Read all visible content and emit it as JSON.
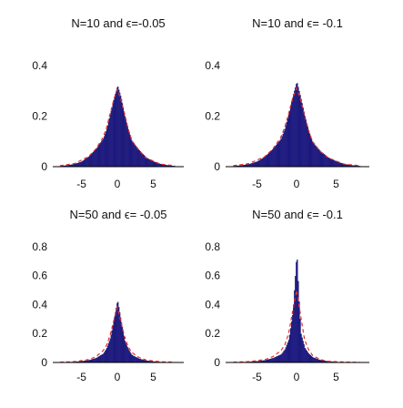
{
  "chart_data": [
    {
      "type": "bar",
      "title": "N=10 and ϵ=-0.05",
      "xticks": [
        "-5",
        "0",
        "5"
      ],
      "yticks": [
        "0",
        "0.2",
        "0.4"
      ],
      "xlim": [
        -8.5,
        8.5
      ],
      "ylim": [
        0,
        0.45
      ],
      "grid": false,
      "series": [
        {
          "kind": "histogram",
          "x": [
            -8,
            -7,
            -6,
            -5,
            -4,
            -3,
            -2,
            -1.5,
            -1,
            -0.5,
            0,
            0.5,
            1,
            1.5,
            2,
            3,
            4,
            5,
            6,
            7,
            8
          ],
          "values": [
            0.002,
            0.005,
            0.01,
            0.02,
            0.04,
            0.07,
            0.11,
            0.15,
            0.21,
            0.27,
            0.32,
            0.27,
            0.2,
            0.145,
            0.1,
            0.065,
            0.035,
            0.02,
            0.01,
            0.005,
            0.002
          ]
        },
        {
          "kind": "fit-curve",
          "color": "#e0302a",
          "x": [
            -8,
            -6,
            -4,
            -3,
            -2,
            -1.5,
            -1,
            -0.5,
            0,
            0.5,
            1,
            1.5,
            2,
            3,
            4,
            6,
            8
          ],
          "values": [
            0.004,
            0.012,
            0.04,
            0.07,
            0.115,
            0.155,
            0.21,
            0.265,
            0.305,
            0.265,
            0.21,
            0.15,
            0.105,
            0.065,
            0.035,
            0.01,
            0.004
          ]
        }
      ]
    },
    {
      "type": "bar",
      "title": "N=10 and ϵ= -0.1",
      "xticks": [
        "-5",
        "0",
        "5"
      ],
      "yticks": [
        "0",
        "0.2",
        "0.4"
      ],
      "xlim": [
        -8.5,
        8.5
      ],
      "ylim": [
        0,
        0.45
      ],
      "grid": false,
      "series": [
        {
          "kind": "histogram",
          "x": [
            -8,
            -7,
            -6,
            -5,
            -4,
            -3,
            -2,
            -1.5,
            -1,
            -0.5,
            0,
            0.5,
            1,
            1.5,
            2,
            3,
            4,
            5,
            6,
            7,
            8
          ],
          "values": [
            0.002,
            0.005,
            0.01,
            0.02,
            0.04,
            0.07,
            0.11,
            0.15,
            0.21,
            0.28,
            0.335,
            0.27,
            0.2,
            0.14,
            0.095,
            0.06,
            0.035,
            0.02,
            0.01,
            0.005,
            0.002
          ]
        },
        {
          "kind": "fit-curve",
          "color": "#e0302a",
          "x": [
            -8,
            -6,
            -4,
            -3,
            -2,
            -1.5,
            -1,
            -0.5,
            0,
            0.5,
            1,
            1.5,
            2,
            3,
            4,
            6,
            8
          ],
          "values": [
            0.004,
            0.012,
            0.04,
            0.07,
            0.115,
            0.155,
            0.21,
            0.27,
            0.31,
            0.265,
            0.205,
            0.145,
            0.1,
            0.06,
            0.035,
            0.01,
            0.004
          ]
        }
      ]
    },
    {
      "type": "bar",
      "title": "N=50 and ϵ= -0.05",
      "xticks": [
        "-5",
        "0",
        "5"
      ],
      "yticks": [
        "0",
        "0.2",
        "0.4",
        "0.6",
        "0.8"
      ],
      "xlim": [
        -8.5,
        8.5
      ],
      "ylim": [
        0,
        0.9
      ],
      "grid": false,
      "series": [
        {
          "kind": "histogram",
          "x": [
            -8,
            -7,
            -6,
            -5,
            -4,
            -3,
            -2,
            -1.5,
            -1,
            -0.5,
            0,
            0.5,
            1,
            1.5,
            2,
            3,
            4,
            5,
            6,
            7,
            8
          ],
          "values": [
            0.001,
            0.002,
            0.004,
            0.008,
            0.015,
            0.03,
            0.06,
            0.1,
            0.17,
            0.3,
            0.43,
            0.28,
            0.15,
            0.09,
            0.05,
            0.025,
            0.012,
            0.006,
            0.003,
            0.001,
            0.001
          ]
        },
        {
          "kind": "fit-curve",
          "color": "#e0302a",
          "x": [
            -8,
            -6,
            -4,
            -3,
            -2,
            -1.5,
            -1,
            -0.5,
            0,
            0.5,
            1,
            1.5,
            2,
            3,
            4,
            6,
            8
          ],
          "values": [
            0.002,
            0.006,
            0.02,
            0.04,
            0.08,
            0.12,
            0.19,
            0.29,
            0.38,
            0.28,
            0.18,
            0.11,
            0.07,
            0.035,
            0.017,
            0.005,
            0.002
          ]
        }
      ]
    },
    {
      "type": "bar",
      "title": "N=50 and ϵ= -0.1",
      "xticks": [
        "-5",
        "0",
        "5"
      ],
      "yticks": [
        "0",
        "0.2",
        "0.4",
        "0.6",
        "0.8"
      ],
      "xlim": [
        -8.5,
        8.5
      ],
      "ylim": [
        0,
        0.9
      ],
      "grid": false,
      "series": [
        {
          "kind": "histogram",
          "x": [
            -8,
            -7,
            -6,
            -5,
            -4,
            -3,
            -2,
            -1.5,
            -1,
            -0.5,
            0,
            0.25,
            0.5,
            1,
            1.5,
            2,
            3,
            4,
            5,
            6,
            7,
            8
          ],
          "values": [
            0.001,
            0.002,
            0.004,
            0.008,
            0.015,
            0.03,
            0.055,
            0.09,
            0.16,
            0.35,
            0.76,
            0.45,
            0.2,
            0.1,
            0.06,
            0.035,
            0.015,
            0.007,
            0.003,
            0.001,
            0.001,
            0.001
          ]
        },
        {
          "kind": "fit-curve",
          "color": "#e0302a",
          "x": [
            -8,
            -6,
            -4,
            -3,
            -2,
            -1.5,
            -1,
            -0.5,
            0,
            0.5,
            1,
            1.5,
            2,
            3,
            4,
            6,
            8
          ],
          "values": [
            0.002,
            0.006,
            0.02,
            0.04,
            0.08,
            0.12,
            0.2,
            0.35,
            0.5,
            0.33,
            0.16,
            0.09,
            0.05,
            0.02,
            0.008,
            0.003,
            0.001
          ]
        }
      ]
    }
  ],
  "colors": {
    "bars": "#1f1b8c",
    "bar_edge": "#15125f",
    "fit_curve": "#e0302a",
    "axis": "#000000"
  }
}
